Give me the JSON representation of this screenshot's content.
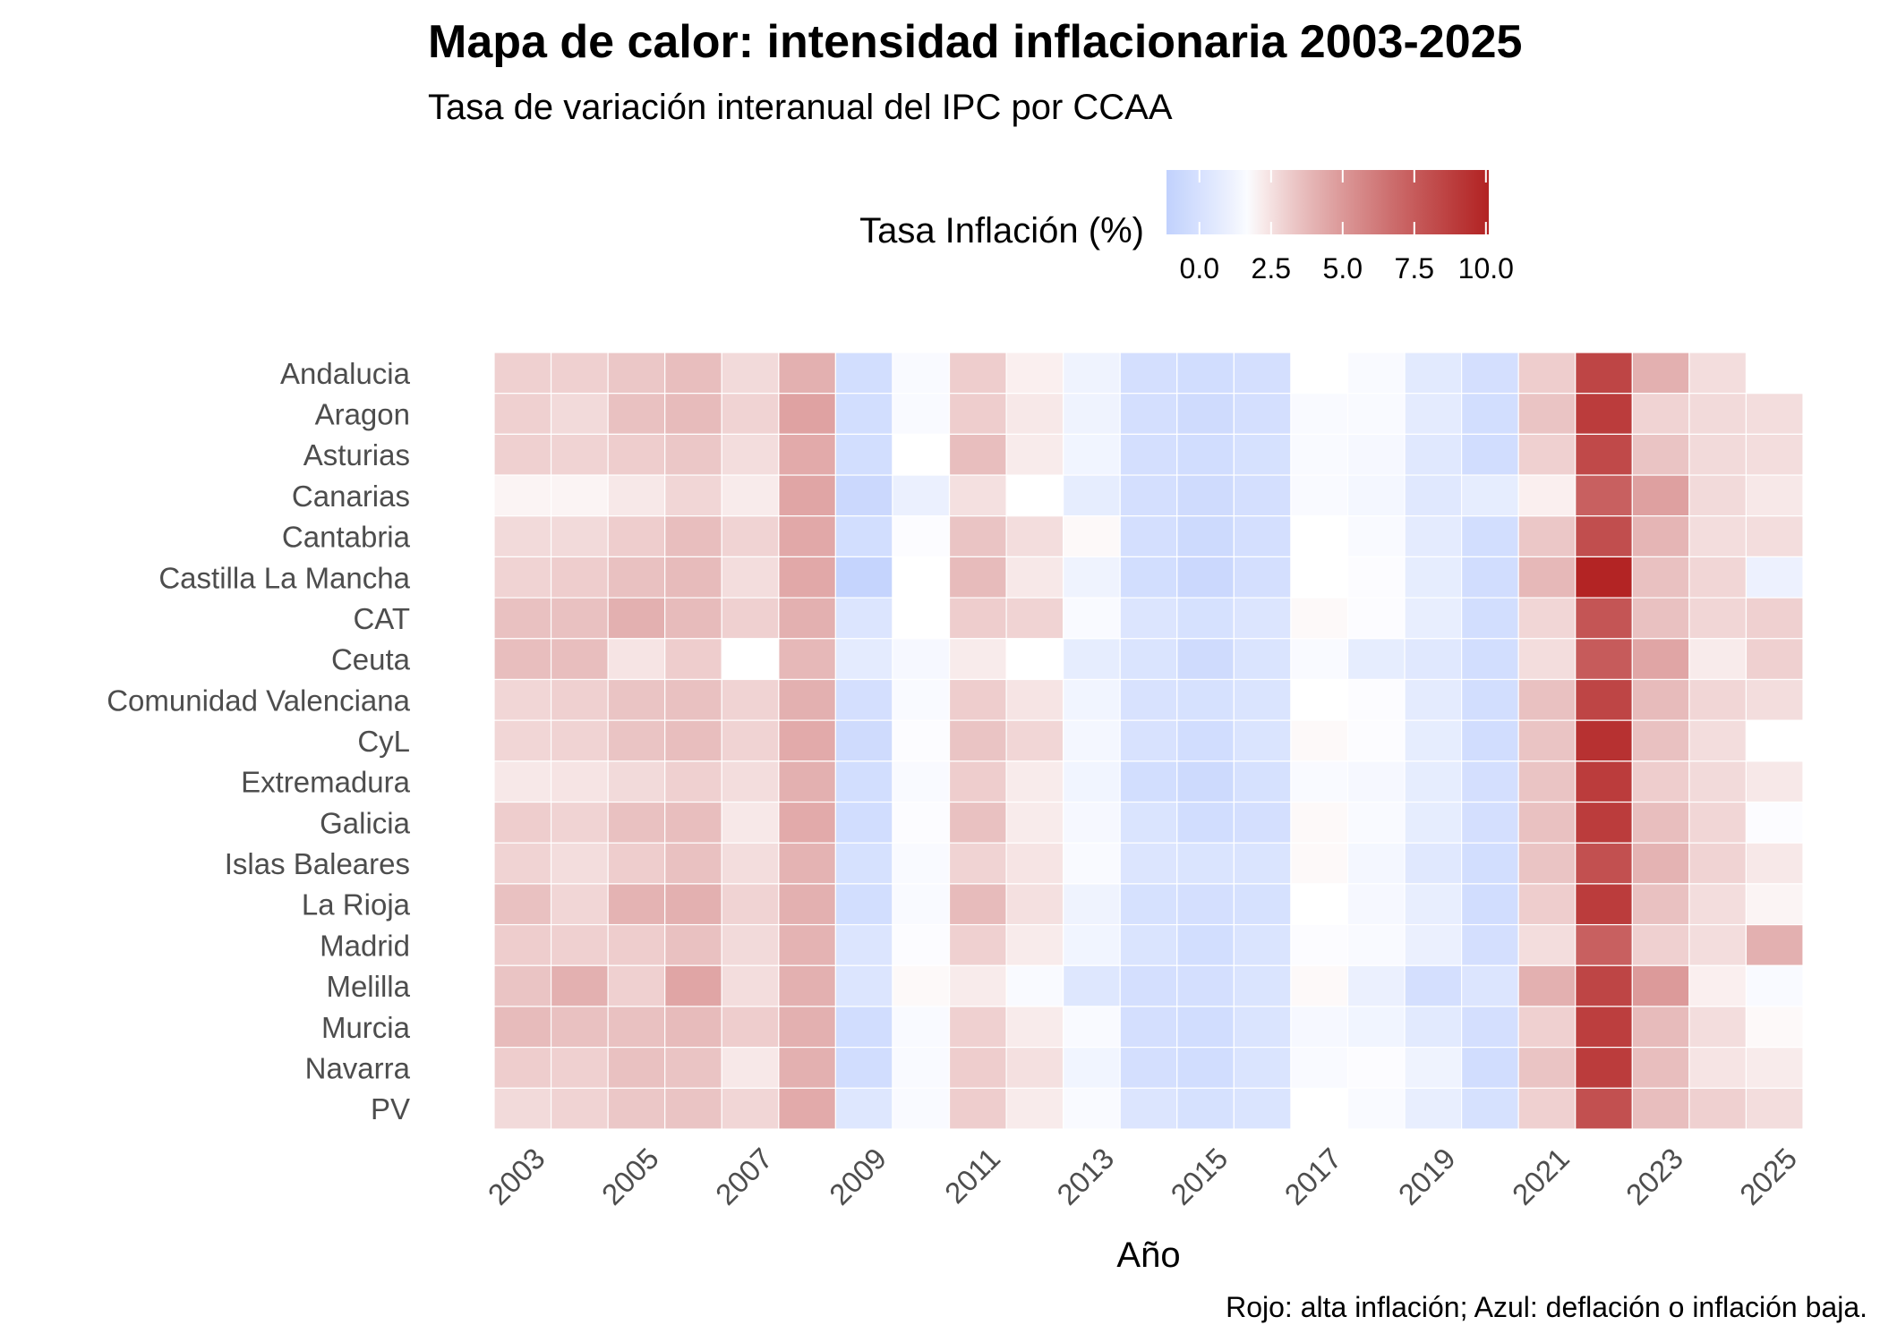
{
  "chart_data": {
    "type": "heatmap",
    "title": "Mapa de calor: intensidad inflacionaria 2003-2025",
    "subtitle": "Tasa de variación interanual del IPC por CCAA",
    "xlabel": "Año",
    "ylabel": "",
    "caption": "Rojo: alta inflación; Azul: deflación o inflación baja.",
    "legend": {
      "title": "Tasa Inflación (%)",
      "position": "top",
      "ticks": [
        0.0,
        2.5,
        5.0,
        7.5,
        10.0
      ],
      "tick_labels": [
        "0.0",
        "2.5",
        "5.0",
        "7.5",
        "10.0"
      ],
      "range": [
        -1.15,
        10.1
      ],
      "midpoint": 1.8,
      "low_color": "#c1d1fd",
      "mid_color": "#ffffff",
      "high_color": "#b22222"
    },
    "x": [
      2003,
      2004,
      2005,
      2006,
      2007,
      2008,
      2009,
      2010,
      2011,
      2012,
      2013,
      2014,
      2015,
      2016,
      2017,
      2018,
      2019,
      2020,
      2021,
      2022,
      2023,
      2024,
      2025
    ],
    "x_tick_labels": [
      "2003",
      "2005",
      "2007",
      "2009",
      "2011",
      "2013",
      "2015",
      "2017",
      "2019",
      "2021",
      "2023",
      "2025"
    ],
    "y": [
      "Andalucia",
      "Aragon",
      "Asturias",
      "Canarias",
      "Cantabria",
      "Castilla La Mancha",
      "CAT",
      "Ceuta",
      "Comunidad Valenciana",
      "CyL",
      "Extremadura",
      "Galicia",
      "Islas Baleares",
      "La Rioja",
      "Madrid",
      "Melilla",
      "Murcia",
      "Navarra",
      "PV"
    ],
    "values": [
      [
        3.0,
        3.0,
        3.3,
        3.6,
        2.7,
        4.1,
        -0.2,
        1.6,
        3.1,
        2.1,
        1.2,
        -0.1,
        -0.3,
        -0.1,
        1.8,
        1.6,
        0.6,
        -0.1,
        3.1,
        8.5,
        4.1,
        2.6,
        null
      ],
      [
        3.0,
        2.7,
        3.5,
        3.7,
        2.9,
        4.6,
        -0.2,
        1.6,
        3.1,
        2.3,
        1.2,
        -0.1,
        -0.4,
        -0.1,
        1.6,
        1.6,
        0.7,
        -0.2,
        3.4,
        8.9,
        2.9,
        2.7,
        2.6
      ],
      [
        3.0,
        2.9,
        3.1,
        3.3,
        2.6,
        4.3,
        -0.2,
        1.8,
        3.6,
        2.2,
        1.3,
        -0.1,
        -0.3,
        0.0,
        1.6,
        1.5,
        0.5,
        -0.3,
        3.0,
        8.3,
        3.4,
        2.7,
        2.6
      ],
      [
        2.0,
        2.0,
        2.3,
        2.8,
        2.2,
        4.5,
        -0.6,
        1.0,
        2.5,
        1.8,
        0.8,
        -0.1,
        -0.4,
        -0.1,
        1.6,
        1.4,
        0.5,
        0.8,
        2.1,
        7.3,
        4.7,
        2.7,
        2.3
      ],
      [
        2.7,
        2.7,
        3.1,
        3.6,
        2.9,
        4.4,
        -0.2,
        1.7,
        3.4,
        2.6,
        1.9,
        -0.1,
        -0.5,
        -0.1,
        1.8,
        1.6,
        0.7,
        -0.2,
        3.3,
        8.1,
        3.9,
        2.6,
        2.6
      ],
      [
        2.9,
        3.1,
        3.5,
        3.7,
        2.6,
        4.4,
        -0.9,
        1.8,
        3.7,
        2.3,
        1.2,
        -0.2,
        -0.6,
        -0.1,
        1.8,
        1.7,
        0.8,
        -0.3,
        3.8,
        10.0,
        3.5,
        2.8,
        1.1
      ],
      [
        3.5,
        3.5,
        4.1,
        3.7,
        3.0,
        4.1,
        0.3,
        1.8,
        3.1,
        2.9,
        1.6,
        0.3,
        0.0,
        0.3,
        1.9,
        1.7,
        0.9,
        -0.2,
        2.8,
        7.8,
        3.5,
        2.8,
        3.0
      ],
      [
        3.6,
        3.6,
        2.4,
        3.1,
        1.8,
        3.8,
        0.7,
        1.5,
        2.2,
        1.8,
        0.8,
        0.2,
        -0.4,
        0.2,
        1.6,
        0.8,
        0.5,
        -0.2,
        2.6,
        7.5,
        4.5,
        2.2,
        3.0
      ],
      [
        2.8,
        3.0,
        3.4,
        3.5,
        2.9,
        4.1,
        -0.1,
        1.6,
        3.1,
        2.4,
        1.3,
        0.1,
        0.0,
        0.2,
        1.8,
        1.7,
        0.7,
        -0.2,
        3.5,
        8.5,
        3.7,
        2.8,
        2.6
      ],
      [
        2.8,
        2.9,
        3.4,
        3.6,
        2.9,
        4.3,
        -0.4,
        1.7,
        3.4,
        2.8,
        1.4,
        0.1,
        -0.3,
        0.2,
        1.9,
        1.7,
        0.8,
        -0.3,
        3.4,
        9.4,
        3.5,
        2.6,
        1.8
      ],
      [
        2.3,
        2.4,
        2.7,
        3.0,
        2.6,
        4.1,
        -0.2,
        1.6,
        3.1,
        2.2,
        1.3,
        -0.2,
        -0.5,
        0.0,
        1.6,
        1.5,
        0.8,
        -0.1,
        3.4,
        8.9,
        3.1,
        2.7,
        2.3
      ],
      [
        3.1,
        2.9,
        3.5,
        3.6,
        2.3,
        4.3,
        -0.3,
        1.7,
        3.5,
        2.2,
        1.5,
        0.2,
        -0.3,
        -0.1,
        1.9,
        1.6,
        0.8,
        -0.1,
        3.5,
        8.9,
        3.6,
        2.8,
        1.7
      ],
      [
        2.9,
        2.6,
        3.1,
        3.5,
        2.6,
        4.0,
        0.0,
        1.6,
        2.9,
        2.4,
        1.6,
        0.3,
        0.2,
        0.2,
        1.9,
        1.4,
        0.5,
        -0.2,
        3.4,
        8.0,
        4.0,
        2.9,
        2.3
      ],
      [
        3.5,
        2.8,
        4.0,
        4.1,
        2.9,
        4.1,
        -0.2,
        1.6,
        3.7,
        2.5,
        1.2,
        0.0,
        -0.1,
        0.0,
        1.8,
        1.5,
        0.9,
        -0.3,
        3.1,
        8.9,
        3.5,
        2.6,
        2.0
      ],
      [
        3.1,
        3.0,
        3.1,
        3.5,
        2.7,
        4.0,
        0.3,
        1.7,
        3.0,
        2.2,
        1.3,
        0.2,
        -0.2,
        0.2,
        1.7,
        1.6,
        1.0,
        -0.1,
        2.6,
        7.3,
        3.0,
        2.6,
        4.1
      ],
      [
        3.4,
        4.1,
        3.0,
        4.5,
        2.6,
        4.1,
        0.3,
        1.9,
        2.2,
        1.6,
        0.4,
        -0.1,
        -0.1,
        0.2,
        1.9,
        1.0,
        -0.1,
        0.3,
        4.1,
        8.5,
        4.9,
        2.1,
        1.6
      ],
      [
        3.7,
        3.5,
        3.5,
        3.7,
        3.1,
        4.1,
        -0.3,
        1.6,
        3.0,
        2.2,
        1.6,
        -0.1,
        -0.3,
        0.2,
        1.5,
        1.3,
        0.6,
        -0.1,
        3.0,
        8.8,
        3.7,
        2.6,
        1.9
      ],
      [
        3.1,
        3.0,
        3.5,
        3.4,
        2.3,
        4.1,
        -0.3,
        1.6,
        3.1,
        2.5,
        1.3,
        -0.1,
        -0.3,
        0.2,
        1.6,
        1.7,
        1.2,
        -0.3,
        3.4,
        8.9,
        3.6,
        2.4,
        2.2
      ],
      [
        2.7,
        2.9,
        3.3,
        3.4,
        2.8,
        4.3,
        0.4,
        1.6,
        3.1,
        2.2,
        1.6,
        0.3,
        0.0,
        0.2,
        null,
        1.6,
        0.9,
        0.0,
        3.0,
        8.0,
        3.6,
        3.0,
        2.6
      ]
    ]
  }
}
